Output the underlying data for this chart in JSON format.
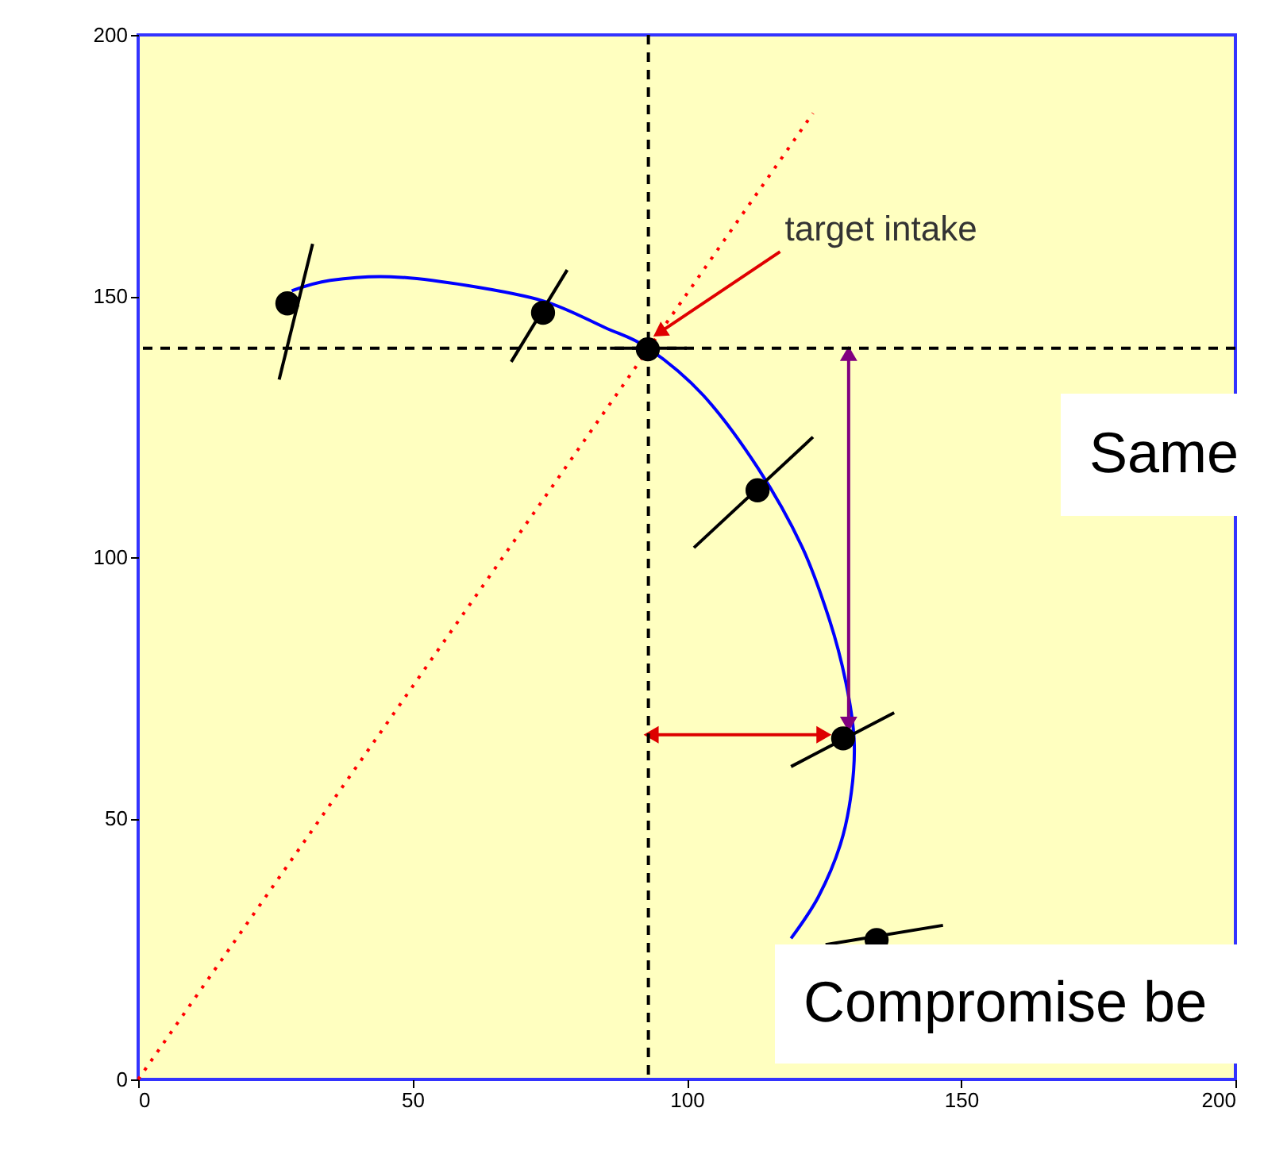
{
  "chart_data": {
    "type": "scatter",
    "xlim": [
      0,
      200
    ],
    "ylim": [
      0,
      200
    ],
    "xticks": [
      0,
      50,
      100,
      150,
      200
    ],
    "yticks": [
      0,
      50,
      100,
      150,
      200
    ],
    "grid": false,
    "series": [
      {
        "type": "line",
        "color": "#0000ff",
        "line_style": "solid",
        "marker": "none",
        "x": [
          28,
          35,
          46,
          60,
          74,
          85,
          93,
          103,
          113,
          121,
          126,
          129,
          130.5,
          130,
          128,
          124,
          119
        ],
        "values": [
          151,
          153,
          153.7,
          152,
          149,
          144,
          140,
          131,
          117,
          102,
          88,
          76,
          65,
          55,
          45,
          35,
          27
        ]
      },
      {
        "type": "line",
        "color": "#ff0000",
        "line_style": "dotted",
        "marker": "none",
        "x": [
          0,
          123
        ],
        "values": [
          0,
          185
        ]
      },
      {
        "type": "line",
        "color": "#000000",
        "line_style": "solid",
        "marker": "none",
        "x": [
          25.7,
          31.8
        ],
        "values": [
          134,
          160
        ]
      },
      {
        "type": "line",
        "color": "#000000",
        "line_style": "solid",
        "marker": "none",
        "x": [
          68,
          78.2
        ],
        "values": [
          137.4,
          155
        ]
      },
      {
        "type": "line",
        "color": "#000000",
        "line_style": "solid",
        "marker": "none",
        "x": [
          86,
          100
        ],
        "values": [
          140,
          140
        ]
      },
      {
        "type": "line",
        "color": "#000000",
        "line_style": "solid",
        "marker": "none",
        "x": [
          101.3,
          123
        ],
        "values": [
          101.8,
          123
        ]
      },
      {
        "type": "line",
        "color": "#000000",
        "line_style": "solid",
        "marker": "none",
        "x": [
          119,
          137.8
        ],
        "values": [
          59.9,
          70.2
        ]
      },
      {
        "type": "line",
        "color": "#000000",
        "line_style": "solid",
        "marker": "none",
        "x": [
          125.3,
          146.7
        ],
        "values": [
          25.8,
          29.5
        ]
      },
      {
        "type": "line",
        "color": "#800080",
        "line_style": "solid",
        "marker": "triangle",
        "x": [
          129.5,
          129.5
        ],
        "values": [
          139,
          68
        ]
      },
      {
        "type": "line",
        "color": "#dd0000",
        "line_style": "solid",
        "marker": "triangle",
        "x": [
          93.5,
          125
        ],
        "values": [
          66,
          66
        ]
      },
      {
        "color": "#000000",
        "marker": "circle",
        "x": [
          27.2,
          73.8,
          92.9,
          112.9,
          128.5,
          134.6
        ],
        "values": [
          148.6,
          146.8,
          139.8,
          112.8,
          65.3,
          26.7
        ]
      }
    ],
    "ref_lines": [
      {
        "axis": "x",
        "value": 93,
        "color": "#000000",
        "line_style": "dashed"
      },
      {
        "axis": "y",
        "value": 140,
        "color": "#000000",
        "line_style": "dashed"
      }
    ],
    "annotations": [
      {
        "text": "target intake",
        "x": 95,
        "y": 143
      },
      "Same",
      "Compromise be"
    ]
  }
}
